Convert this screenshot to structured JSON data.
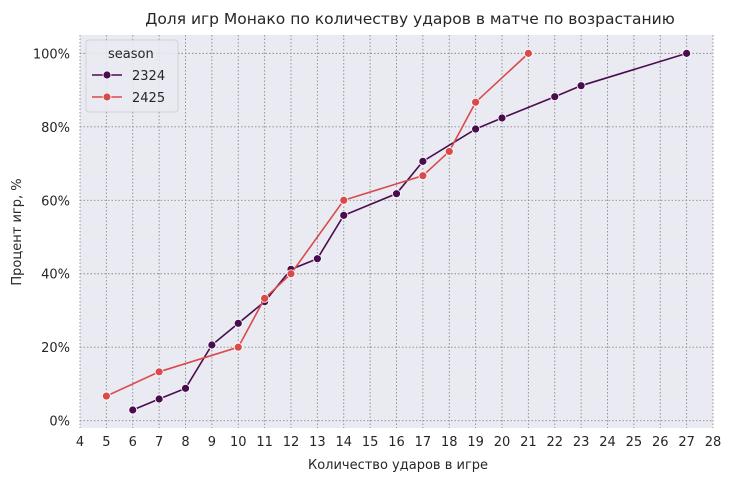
{
  "chart_data": {
    "type": "line",
    "title": "Доля игр Монако по количеству ударов в матче по возрастанию",
    "xlabel": "Количество ударов в игре",
    "ylabel": "Процент игр, %",
    "xlim": [
      4,
      28
    ],
    "ylim": [
      -2,
      105
    ],
    "xticks": [
      4,
      5,
      6,
      7,
      8,
      9,
      10,
      11,
      12,
      13,
      14,
      15,
      16,
      17,
      18,
      19,
      20,
      21,
      22,
      23,
      24,
      25,
      26,
      27,
      28
    ],
    "yticks": [
      0,
      20,
      40,
      60,
      80,
      100
    ],
    "ytick_labels": [
      "0%",
      "20%",
      "40%",
      "60%",
      "80%",
      "100%"
    ],
    "grid": true,
    "legend_title": "season",
    "legend_position": "top-left",
    "series": [
      {
        "name": "2324",
        "color": "#4a0c4e",
        "x": [
          6,
          7,
          8,
          9,
          10,
          11,
          12,
          13,
          14,
          16,
          17,
          19,
          20,
          22,
          23,
          27
        ],
        "y": [
          2.9,
          5.9,
          8.8,
          20.6,
          26.5,
          32.4,
          41.2,
          44.1,
          55.9,
          61.8,
          70.6,
          79.4,
          82.4,
          88.2,
          91.2,
          100
        ]
      },
      {
        "name": "2425",
        "color": "#d94a4a",
        "x": [
          5,
          7,
          10,
          11,
          12,
          14,
          17,
          18,
          19,
          21
        ],
        "y": [
          6.7,
          13.3,
          20.0,
          33.3,
          40.0,
          60.0,
          66.7,
          73.3,
          86.7,
          100
        ]
      }
    ]
  }
}
